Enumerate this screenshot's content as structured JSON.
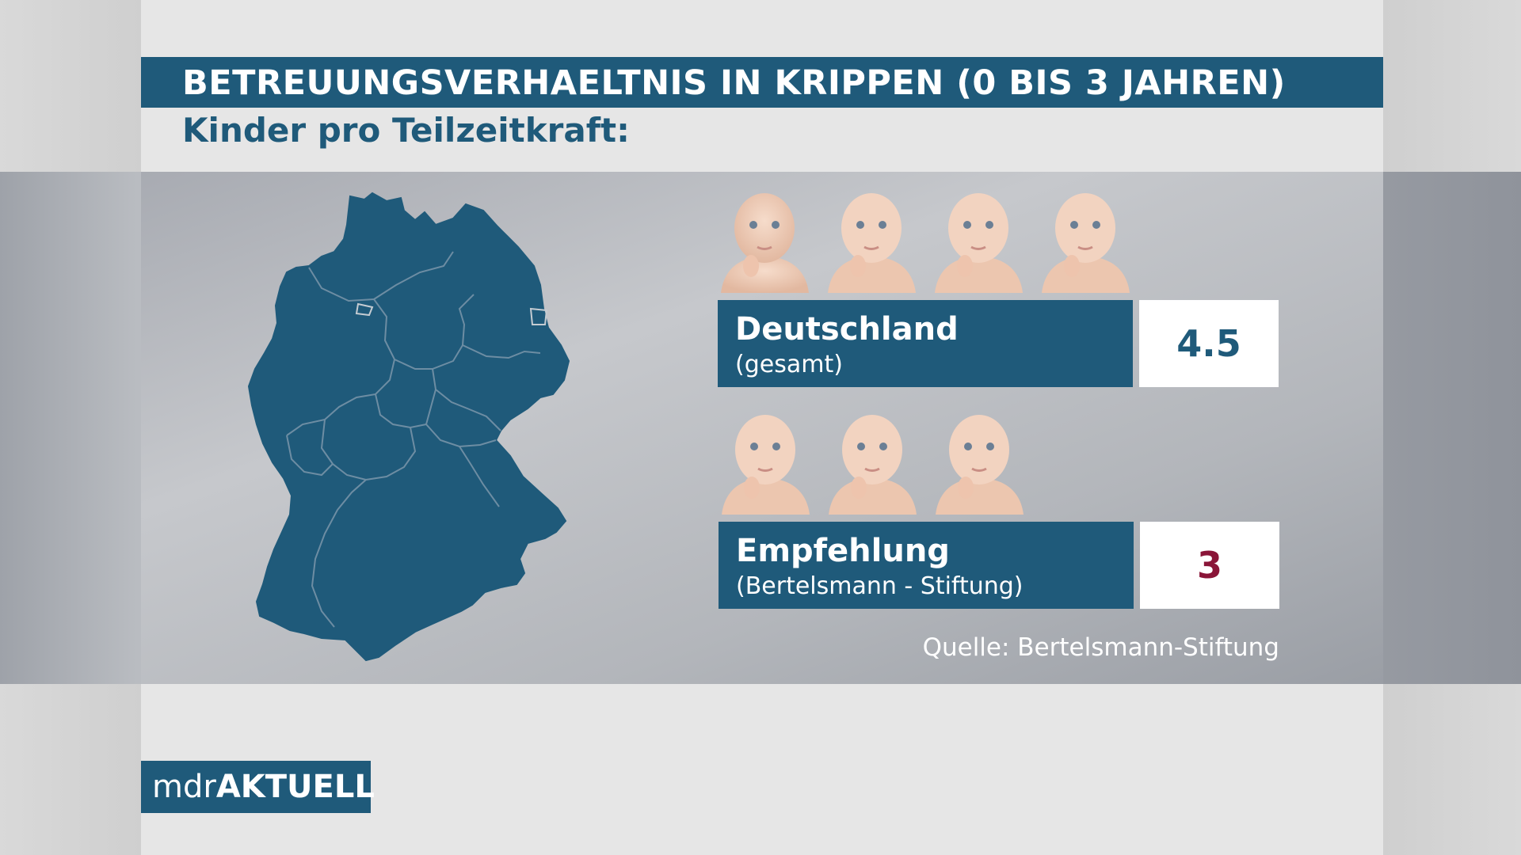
{
  "title": "BETREUUNGSVERHAELTNIS IN KRIPPEN (0 BIS 3 JAHREN)",
  "subtitle": "Kinder pro Teilzeitkraft:",
  "colors": {
    "primary_blue": "#1f5a7a",
    "accent_red": "#8a1538",
    "white": "#ffffff"
  },
  "map_icon": "germany-map-icon",
  "rows": [
    {
      "label": "Deutschland",
      "sublabel": "(gesamt)",
      "value": "4.5",
      "baby_count": 4
    },
    {
      "label": "Empfehlung",
      "sublabel": "(Bertelsmann - Stiftung)",
      "value": "3",
      "baby_count": 3
    }
  ],
  "source": "Quelle: Bertelsmann-Stiftung",
  "logo": {
    "prefix": "mdr",
    "suffix": "AKTUELL"
  }
}
